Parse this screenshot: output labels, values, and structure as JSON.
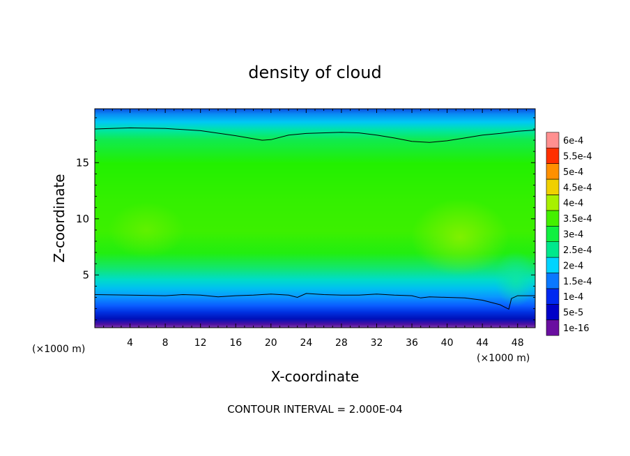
{
  "chart_data": {
    "type": "heatmap",
    "title": "density of cloud",
    "xlabel": "X-coordinate",
    "ylabel": "Z-coordinate",
    "x_unit_left": "(×1000 m)",
    "x_unit_right": "(×1000 m)",
    "xlim": [
      0,
      50
    ],
    "ylim": [
      0.3,
      19.8
    ],
    "x_ticks": [
      4,
      8,
      12,
      16,
      20,
      24,
      28,
      32,
      36,
      40,
      44,
      48
    ],
    "x_tick_labels": [
      "4",
      "8",
      "12",
      "16",
      "20",
      "24",
      "28",
      "32",
      "36",
      "40",
      "44",
      "48"
    ],
    "y_ticks": [
      5,
      10,
      15
    ],
    "y_tick_labels": [
      "5",
      "10",
      "15"
    ],
    "colorbar": {
      "levels": [
        1e-16,
        5e-05,
        0.0001,
        0.00015,
        0.0002,
        0.00025,
        0.0003,
        0.00035,
        0.0004,
        0.00045,
        0.0005,
        0.00055,
        0.0006
      ],
      "labels": [
        "1e-16",
        "5e-5",
        "1e-4",
        "1.5e-4",
        "2e-4",
        "2.5e-4",
        "3e-4",
        "3.5e-4",
        "4e-4",
        "4.5e-4",
        "5e-4",
        "5.5e-4",
        "6e-4"
      ],
      "colors": [
        "#6a0fa0",
        "#0000c8",
        "#0028f0",
        "#0a78ff",
        "#00d4ff",
        "#00e88c",
        "#10f040",
        "#44f000",
        "#a8f000",
        "#f0d000",
        "#ff9000",
        "#ff3000",
        "#ff9090"
      ]
    },
    "contour_lines": [
      {
        "level": 0.0002,
        "points": [
          [
            0,
            18.0
          ],
          [
            4,
            18.1
          ],
          [
            8,
            18.05
          ],
          [
            12,
            17.85
          ],
          [
            16,
            17.4
          ],
          [
            19,
            17.0
          ],
          [
            20,
            17.05
          ],
          [
            22,
            17.45
          ],
          [
            24,
            17.6
          ],
          [
            28,
            17.7
          ],
          [
            30,
            17.65
          ],
          [
            32,
            17.45
          ],
          [
            34,
            17.2
          ],
          [
            36,
            16.9
          ],
          [
            38,
            16.8
          ],
          [
            40,
            16.95
          ],
          [
            42,
            17.2
          ],
          [
            44,
            17.45
          ],
          [
            46,
            17.6
          ],
          [
            48,
            17.8
          ],
          [
            50,
            17.9
          ]
        ]
      },
      {
        "level": 0.0002,
        "points": [
          [
            0,
            3.25
          ],
          [
            4,
            3.2
          ],
          [
            8,
            3.15
          ],
          [
            10,
            3.25
          ],
          [
            12,
            3.2
          ],
          [
            14,
            3.05
          ],
          [
            16,
            3.15
          ],
          [
            18,
            3.2
          ],
          [
            20,
            3.3
          ],
          [
            22,
            3.2
          ],
          [
            23,
            3.0
          ],
          [
            24,
            3.35
          ],
          [
            26,
            3.25
          ],
          [
            28,
            3.2
          ],
          [
            30,
            3.2
          ],
          [
            32,
            3.3
          ],
          [
            34,
            3.2
          ],
          [
            36,
            3.15
          ],
          [
            37,
            2.95
          ],
          [
            38,
            3.05
          ],
          [
            40,
            3.0
          ],
          [
            42,
            2.95
          ],
          [
            44,
            2.75
          ],
          [
            46,
            2.35
          ],
          [
            47,
            1.95
          ],
          [
            47.3,
            2.9
          ],
          [
            48,
            3.15
          ],
          [
            50,
            3.15
          ]
        ]
      }
    ],
    "annotation": "CONTOUR INTERVAL = 2.000E-04",
    "grid": false,
    "legend_placement": "right"
  }
}
